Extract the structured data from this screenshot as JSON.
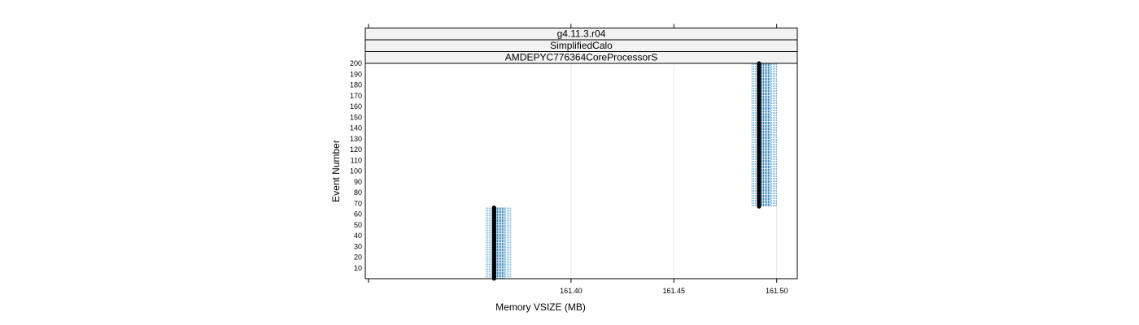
{
  "chart_data": {
    "type": "scatter",
    "strips": [
      "g4.11.3.r04",
      "SimplifiedCalo",
      "AMDEPYC776364CoreProcessorS"
    ],
    "xlabel": "Memory VSIZE (MB)",
    "ylabel": "Event Number",
    "xlim": [
      161.3,
      161.51
    ],
    "ylim": [
      0,
      200
    ],
    "x_ticks": [
      161.4,
      161.45,
      161.5
    ],
    "x_tick_labels": [
      "161.40",
      "161.45",
      "161.50"
    ],
    "y_ticks": [
      10,
      20,
      30,
      40,
      50,
      60,
      70,
      80,
      90,
      100,
      110,
      120,
      130,
      140,
      150,
      160,
      170,
      180,
      190,
      200
    ],
    "y_tick_labels": [
      "10",
      "20",
      "30",
      "40",
      "50",
      "60",
      "70",
      "80",
      "90",
      "100",
      "110",
      "120",
      "130",
      "140",
      "150",
      "160",
      "170",
      "180",
      "190",
      "200"
    ],
    "grid": true,
    "series": [
      {
        "values": [
          {
            "x": 161.3626,
            "y_start": 0,
            "y_end": 66
          },
          {
            "x": 161.4914,
            "y_start": 67,
            "y_end": 200
          }
        ],
        "bands": [
          {
            "x_min": 161.3588,
            "x_max": 161.3707,
            "y_start": 0,
            "y_end": 66
          },
          {
            "x_min": 161.488,
            "x_max": 161.5,
            "y_start": 67,
            "y_end": 200
          }
        ]
      }
    ],
    "colors": {
      "line": "#000000",
      "band": "#1f78b4",
      "band_light": "#6baed6",
      "strip_bg": "#f2f2f2",
      "grid": "#e6e6e6"
    }
  }
}
